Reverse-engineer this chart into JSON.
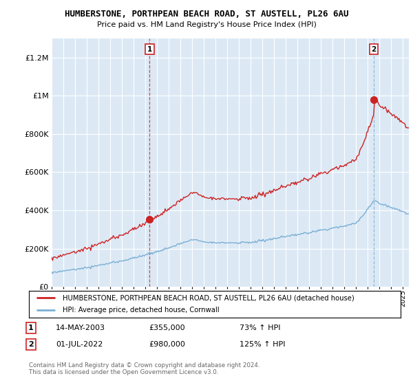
{
  "title": "HUMBERSTONE, PORTHPEAN BEACH ROAD, ST AUSTELL, PL26 6AU",
  "subtitle": "Price paid vs. HM Land Registry's House Price Index (HPI)",
  "ylim": [
    0,
    1300000
  ],
  "yticks": [
    0,
    200000,
    400000,
    600000,
    800000,
    1000000,
    1200000
  ],
  "ytick_labels": [
    "£0",
    "£200K",
    "£400K",
    "£600K",
    "£800K",
    "£1M",
    "£1.2M"
  ],
  "plot_bg_color": "#dce9f5",
  "background_color": "#ffffff",
  "grid_color": "#ffffff",
  "hpi_color": "#7aafd4",
  "price_color": "#cc2222",
  "sale1_year": 2003.37,
  "sale1_price": 355000,
  "sale1_label": "1",
  "sale2_year": 2022.5,
  "sale2_price": 980000,
  "sale2_label": "2",
  "legend_line1": "HUMBERSTONE, PORTHPEAN BEACH ROAD, ST AUSTELL, PL26 6AU (detached house)",
  "legend_line2": "HPI: Average price, detached house, Cornwall",
  "note1_label": "1",
  "note1_date": "14-MAY-2003",
  "note1_price": "£355,000",
  "note1_hpi": "73% ↑ HPI",
  "note2_label": "2",
  "note2_date": "01-JUL-2022",
  "note2_price": "£980,000",
  "note2_hpi": "125% ↑ HPI",
  "copyright": "Contains HM Land Registry data © Crown copyright and database right 2024.\nThis data is licensed under the Open Government Licence v3.0."
}
